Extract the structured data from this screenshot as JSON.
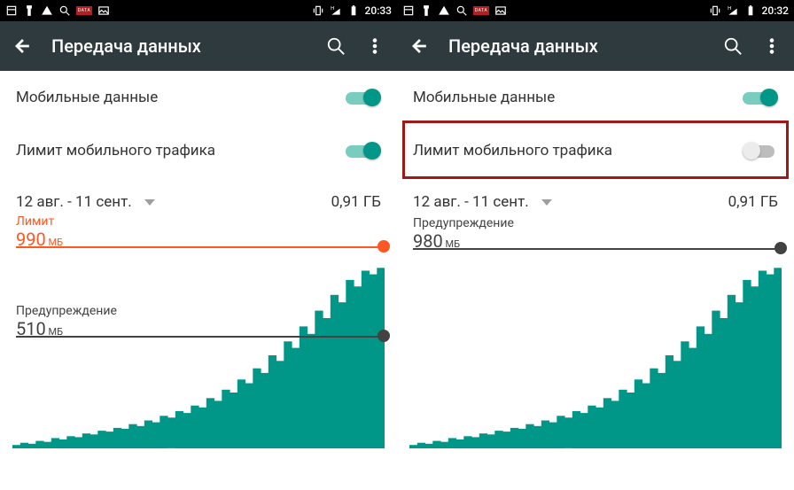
{
  "panels": [
    {
      "statusbar": {
        "time": "20:33"
      },
      "actionbar": {
        "title": "Передача данных"
      },
      "mobile_data": {
        "label": "Мобильные данные",
        "on": true
      },
      "limit": {
        "label": "Лимит мобильного трафика",
        "on": true,
        "highlight": false
      },
      "period": {
        "range": "12 авг. - 11 сент.",
        "usage": "0,91 ГБ"
      },
      "chart": {
        "ymax_mb": 1000,
        "limit_line": {
          "label": "Лимит",
          "value": "990",
          "unit": "МБ",
          "mb": 990,
          "color": "#ff5722",
          "show": true
        },
        "warning_line": {
          "label": "Предупреждение",
          "value": "510",
          "unit": "МБ",
          "mb": 510,
          "color": "#424242",
          "show": true
        },
        "bar_color": "#009688",
        "bars_mb": [
          18,
          30,
          25,
          40,
          35,
          55,
          48,
          65,
          60,
          80,
          75,
          95,
          90,
          110,
          105,
          130,
          120,
          150,
          140,
          175,
          165,
          200,
          190,
          230,
          220,
          270,
          255,
          315,
          300,
          370,
          350,
          430,
          405,
          500,
          470,
          575,
          540,
          655,
          615,
          740,
          700,
          825,
          785,
          905,
          870,
          955,
          935,
          970
        ]
      }
    },
    {
      "statusbar": {
        "time": "20:32"
      },
      "actionbar": {
        "title": "Передача данных"
      },
      "mobile_data": {
        "label": "Мобильные данные",
        "on": true
      },
      "limit": {
        "label": "Лимит мобильного трафика",
        "on": false,
        "highlight": true
      },
      "period": {
        "range": "12 авг. - 11 сент.",
        "usage": "0,91 ГБ"
      },
      "chart": {
        "ymax_mb": 1000,
        "limit_line": {
          "show": false
        },
        "warning_line": {
          "label": "Предупреждение",
          "value": "980",
          "unit": "МБ",
          "mb": 980,
          "color": "#424242",
          "show": true
        },
        "bar_color": "#009688",
        "bars_mb": [
          18,
          30,
          25,
          40,
          35,
          55,
          48,
          65,
          60,
          80,
          75,
          95,
          90,
          110,
          105,
          130,
          120,
          150,
          140,
          175,
          165,
          200,
          190,
          230,
          220,
          270,
          255,
          315,
          300,
          370,
          350,
          430,
          405,
          500,
          470,
          575,
          540,
          655,
          615,
          740,
          700,
          825,
          785,
          905,
          870,
          955,
          935,
          970
        ]
      }
    }
  ],
  "colors": {
    "actionbar_bg": "#2e3a3d",
    "teal": "#009688",
    "teal_light": "#79cdbf",
    "grey_track": "#bdbdbd",
    "grey_thumb": "#ececec",
    "highlight_border": "#a01818"
  }
}
